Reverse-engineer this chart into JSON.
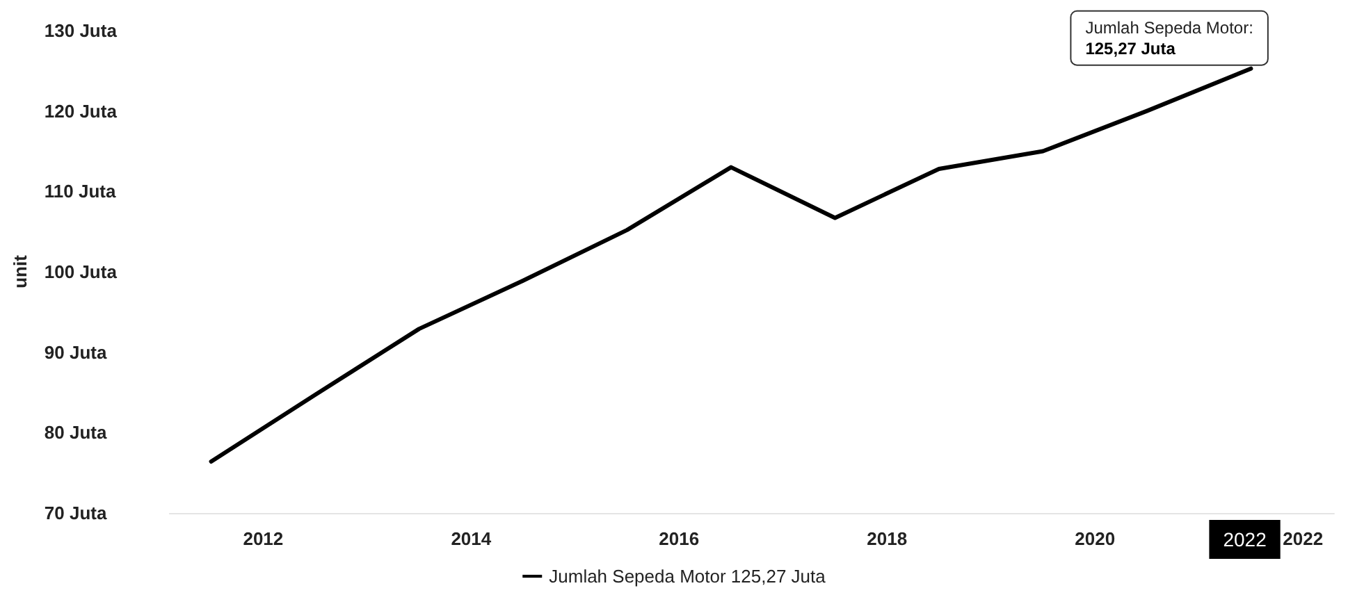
{
  "chart_data": {
    "type": "line",
    "ylabel": "unit",
    "x": [
      2012,
      2013,
      2014,
      2015,
      2016,
      2017,
      2018,
      2019,
      2020,
      2021,
      2022
    ],
    "series": [
      {
        "name": "Jumlah Sepeda Motor 125,27 Juta",
        "color": "#000000",
        "values": [
          76.4,
          84.7,
          92.9,
          98.9,
          105.2,
          113.0,
          106.7,
          112.8,
          115.0,
          120.0,
          125.27
        ]
      }
    ],
    "xlim": [
      2011.6,
      2022.8
    ],
    "xticks": [
      {
        "value": 2012.5,
        "label": "2012"
      },
      {
        "value": 2014.5,
        "label": "2014"
      },
      {
        "value": 2016.5,
        "label": "2016"
      },
      {
        "value": 2018.5,
        "label": "2018"
      },
      {
        "value": 2020.5,
        "label": "2020"
      },
      {
        "value": 2022.5,
        "label": "2022"
      }
    ],
    "ylim": [
      70,
      130
    ],
    "yticks": [
      {
        "value": 70,
        "label": "70 Juta"
      },
      {
        "value": 80,
        "label": "80 Juta"
      },
      {
        "value": 90,
        "label": "90 Juta"
      },
      {
        "value": 100,
        "label": "100 Juta"
      },
      {
        "value": 110,
        "label": "110 Juta"
      },
      {
        "value": 120,
        "label": "120 Juta"
      },
      {
        "value": 130,
        "label": "130 Juta"
      }
    ],
    "annotations": [
      {
        "text": "Jumlah Sepeda Motor:\n125,27 Juta",
        "x": 2022,
        "y": 125.27
      },
      "2022"
    ],
    "grid": false,
    "legend": "bottom",
    "marker": "none",
    "line_style": "solid"
  }
}
